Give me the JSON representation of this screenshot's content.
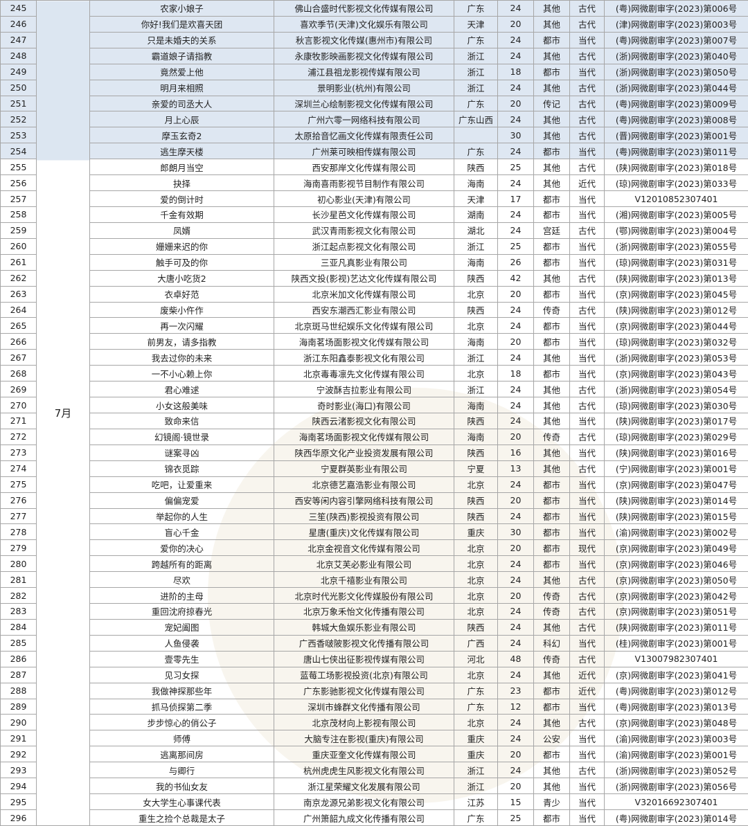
{
  "month": "7月",
  "highlight_color": "#dce6f1",
  "highlighted_rows": [
    "245",
    "246",
    "247",
    "248",
    "249",
    "250",
    "251",
    "252",
    "253",
    "254"
  ],
  "rows": [
    [
      "245",
      "农家小娘子",
      "佛山合盛时代影视文化传媒有限公司",
      "广东",
      "24",
      "其他",
      "古代",
      "(粤)网微剧审字(2023)第006号"
    ],
    [
      "246",
      "你好!我们是欢喜天团",
      "喜欢季节(天津)文化娱乐有限公司",
      "天津",
      "20",
      "其他",
      "古代",
      "(津)网微剧审字(2023)第003号"
    ],
    [
      "247",
      "只是未婚夫的关系",
      "秋言影视文化传媒(惠州市)有限公司",
      "广东",
      "24",
      "都市",
      "当代",
      "(粤)网微剧审字(2023)第007号"
    ],
    [
      "248",
      "霸道娘子请指教",
      "永康牧影映画影视文化传媒有限公司",
      "浙江",
      "24",
      "其他",
      "古代",
      "(浙)网微剧审字(2023)第040号"
    ],
    [
      "249",
      "竟然爱上他",
      "浦江县祖龙影视传媒有限公司",
      "浙江",
      "18",
      "都市",
      "当代",
      "(浙)网微剧审字(2023)第050号"
    ],
    [
      "250",
      "明月来相照",
      "景明影业(杭州)有限公司",
      "浙江",
      "24",
      "其他",
      "古代",
      "(浙)网微剧审字(2023)第044号"
    ],
    [
      "251",
      "亲爱的司丞大人",
      "深圳兰心绘制影视文化传媒有限公司",
      "广东",
      "20",
      "传记",
      "古代",
      "(粤)网微剧审字(2023)第009号"
    ],
    [
      "252",
      "月上心辰",
      "广州六零一网络科技有限公司",
      "广东山西",
      "24",
      "其他",
      "古代",
      "(粤)网微剧审字(2023)第008号"
    ],
    [
      "253",
      "摩玉玄奇2",
      "太原拾音忆画文化传媒有限责任公司",
      "",
      "30",
      "其他",
      "古代",
      "(晋)网微剧审字(2023)第001号"
    ],
    [
      "254",
      "逃生摩天楼",
      "广州莱可映相传媒有限公司",
      "广东",
      "24",
      "都市",
      "当代",
      "(粤)网微剧审字(2023)第011号"
    ],
    [
      "255",
      "郎朗月当空",
      "西安那岸文化传媒有限公司",
      "陕西",
      "25",
      "其他",
      "古代",
      "(陕)网微剧审字(2023)第018号"
    ],
    [
      "256",
      "抉择",
      "海南喜雨影视节目制作有限公司",
      "海南",
      "24",
      "其他",
      "近代",
      "(琼)网微剧审字(2023)第033号"
    ],
    [
      "257",
      "爱的倒计时",
      "初心影业(天津)有限公司",
      "天津",
      "17",
      "都市",
      "当代",
      "V12010852307401"
    ],
    [
      "258",
      "千金有效期",
      "长沙星芭文化传媒有限公司",
      "湖南",
      "24",
      "都市",
      "当代",
      "(湘)网微剧审字(2023)第005号"
    ],
    [
      "259",
      "凤婿",
      "武汉青雨影视文化有限公司",
      "湖北",
      "24",
      "宫廷",
      "古代",
      "(鄂)网微剧审字(2023)第004号"
    ],
    [
      "260",
      "姗姗来迟的你",
      "浙江起点影视文化有限公司",
      "浙江",
      "25",
      "都市",
      "当代",
      "(浙)网微剧审字(2023)第055号"
    ],
    [
      "261",
      "触手可及的你",
      "三亚凡真影业有限公司",
      "海南",
      "26",
      "都市",
      "当代",
      "(琼)网微剧审字(2023)第031号"
    ],
    [
      "262",
      "大唐小吃货2",
      "陕西文投(影视)艺达文化传媒有限公司",
      "陕西",
      "42",
      "其他",
      "古代",
      "(陕)网微剧审字(2023)第013号"
    ],
    [
      "263",
      "衣卓好范",
      "北京米加文化传媒有限公司",
      "北京",
      "20",
      "都市",
      "当代",
      "(京)网微剧审字(2023)第045号"
    ],
    [
      "264",
      "废柴小仵作",
      "西安东潮西汇影业有限公司",
      "陕西",
      "24",
      "传奇",
      "古代",
      "(陕)网微剧审字(2023)第012号"
    ],
    [
      "265",
      "再一次闪耀",
      "北京斑马世纪娱乐文化传媒有限公司",
      "北京",
      "24",
      "都市",
      "当代",
      "(京)网微剧审字(2023)第044号"
    ],
    [
      "266",
      "前男友，请多指教",
      "海南茗场面影视文化传媒有限公司",
      "海南",
      "20",
      "都市",
      "当代",
      "(琼)网微剧审字(2023)第032号"
    ],
    [
      "267",
      "我去过你的未来",
      "浙江东阳鑫泰影视文化有限公司",
      "浙江",
      "24",
      "其他",
      "当代",
      "(浙)网微剧审字(2023)第053号"
    ],
    [
      "268",
      "一不小心赖上你",
      "北京毒毒凛先文化传媒有限公司",
      "北京",
      "18",
      "都市",
      "当代",
      "(京)网微剧审字(2023)第043号"
    ],
    [
      "269",
      "君心难逑",
      "宁波酥吉拉影业有限公司",
      "浙江",
      "24",
      "其他",
      "古代",
      "(浙)网微剧审字(2023)第054号"
    ],
    [
      "270",
      "小女这般美味",
      "奇时影业(海口)有限公司",
      "海南",
      "24",
      "其他",
      "古代",
      "(琼)网微剧审字(2023)第030号"
    ],
    [
      "271",
      "致命来信",
      "陕西云渚影视文化有限公司",
      "陕西",
      "24",
      "其他",
      "当代",
      "(陕)网微剧审字(2023)第017号"
    ],
    [
      "272",
      "幻镜阁·镜世录",
      "海南茗场面影视文化传媒有限公司",
      "海南",
      "20",
      "传奇",
      "古代",
      "(琼)网微剧审字(2023)第029号"
    ],
    [
      "273",
      "谜案寻凶",
      "陕西华原文化产业投资发展有限公司",
      "陕西",
      "16",
      "其他",
      "当代",
      "(陕)网微剧审字(2023)第016号"
    ],
    [
      "274",
      "锦衣觅踪",
      "宁夏群英影业有限公司",
      "宁夏",
      "13",
      "其他",
      "古代",
      "(宁)网微剧审字(2023)第001号"
    ],
    [
      "275",
      "吃吧，让爱重来",
      "北京德艺嘉浩影业有限公司",
      "北京",
      "24",
      "都市",
      "当代",
      "(京)网微剧审字(2023)第047号"
    ],
    [
      "276",
      "偏偏宠爱",
      "西安等闲内容引擎网络科技有限公司",
      "陕西",
      "20",
      "都市",
      "当代",
      "(陕)网微剧审字(2023)第014号"
    ],
    [
      "277",
      "举起你的人生",
      "三笙(陕西)影视投资有限公司",
      "陕西",
      "24",
      "都市",
      "当代",
      "(陕)网微剧审字(2023)第015号"
    ],
    [
      "278",
      "盲心千金",
      "星唐(重庆)文化传媒有限公司",
      "重庆",
      "30",
      "都市",
      "当代",
      "(渝)网微剧审字(2023)第002号"
    ],
    [
      "279",
      "爱你的决心",
      "北京金视音文化传媒有限公司",
      "北京",
      "20",
      "都市",
      "现代",
      "(京)网微剧审字(2023)第049号"
    ],
    [
      "280",
      "跨越所有的距离",
      "北京艾芙必影业有限公司",
      "北京",
      "24",
      "都市",
      "当代",
      "(京)网微剧审字(2023)第046号"
    ],
    [
      "281",
      "尽欢",
      "北京千禧影业有限公司",
      "北京",
      "24",
      "其他",
      "古代",
      "(京)网微剧审字(2023)第050号"
    ],
    [
      "282",
      "进阶的主母",
      "北京时代光影文化传媒股份有限公司",
      "北京",
      "20",
      "传奇",
      "古代",
      "(京)网微剧审字(2023)第042号"
    ],
    [
      "283",
      "重回沈府掠春光",
      "北京万象禾怡文化传播有限公司",
      "北京",
      "24",
      "传奇",
      "古代",
      "(京)网微剧审字(2023)第051号"
    ],
    [
      "284",
      "宠妃阖图",
      "韩城大鱼娱乐影业有限公司",
      "陕西",
      "24",
      "其他",
      "古代",
      "(陕)网微剧审字(2023)第011号"
    ],
    [
      "285",
      "人鱼侵袭",
      "广西香啵陂影视文化传播有限公司",
      "广西",
      "24",
      "科幻",
      "当代",
      "(桂)网微剧审字(2023)第001号"
    ],
    [
      "286",
      "壹零先生",
      "唐山七侠出征影视传媒有限公司",
      "河北",
      "48",
      "传奇",
      "古代",
      "V13007982307401"
    ],
    [
      "287",
      "见习女探",
      "蓝莓工场影视投资(北京)有限公司",
      "北京",
      "24",
      "其他",
      "近代",
      "(京)网微剧审字(2023)第041号"
    ],
    [
      "288",
      "我做神探那些年",
      "广东影驰影视文化传媒有限公司",
      "广东",
      "23",
      "都市",
      "近代",
      "(粤)网微剧审字(2023)第012号"
    ],
    [
      "289",
      "抓马侦探第二季",
      "深圳市蜂群文化传播有限公司",
      "广东",
      "12",
      "都市",
      "当代",
      "(粤)网微剧审字(2023)第013号"
    ],
    [
      "290",
      "步步惊心的俏公子",
      "北京茂材向上影视有限公司",
      "北京",
      "24",
      "其他",
      "古代",
      "(京)网微剧审字(2023)第048号"
    ],
    [
      "291",
      "师傅",
      "大脑专注在影视(重庆)有限公司",
      "重庆",
      "24",
      "公安",
      "当代",
      "(渝)网微剧审字(2023)第003号"
    ],
    [
      "292",
      "逃离那间房",
      "重庆亚奎文化传媒有限公司",
      "重庆",
      "20",
      "都市",
      "当代",
      "(渝)网微剧审字(2023)第001号"
    ],
    [
      "293",
      "与卿行",
      "杭州虎虎生风影视文化有限公司",
      "浙江",
      "24",
      "其他",
      "古代",
      "(浙)网微剧审字(2023)第052号"
    ],
    [
      "294",
      "我的书仙女友",
      "浙江星荣耀文化发展有限公司",
      "浙江",
      "20",
      "其他",
      "当代",
      "(浙)网微剧审字(2023)第056号"
    ],
    [
      "295",
      "女大学生心事课代表",
      "南京龙源兄弟影视文化有限公司",
      "江苏",
      "15",
      "青少",
      "当代",
      "V32016692307401"
    ],
    [
      "296",
      "重生之捡个总裁是太子",
      "广州箫韶九成文化传播有限公司",
      "广东",
      "25",
      "都市",
      "当代",
      "(粤)网微剧审字(2023)第014号"
    ]
  ]
}
